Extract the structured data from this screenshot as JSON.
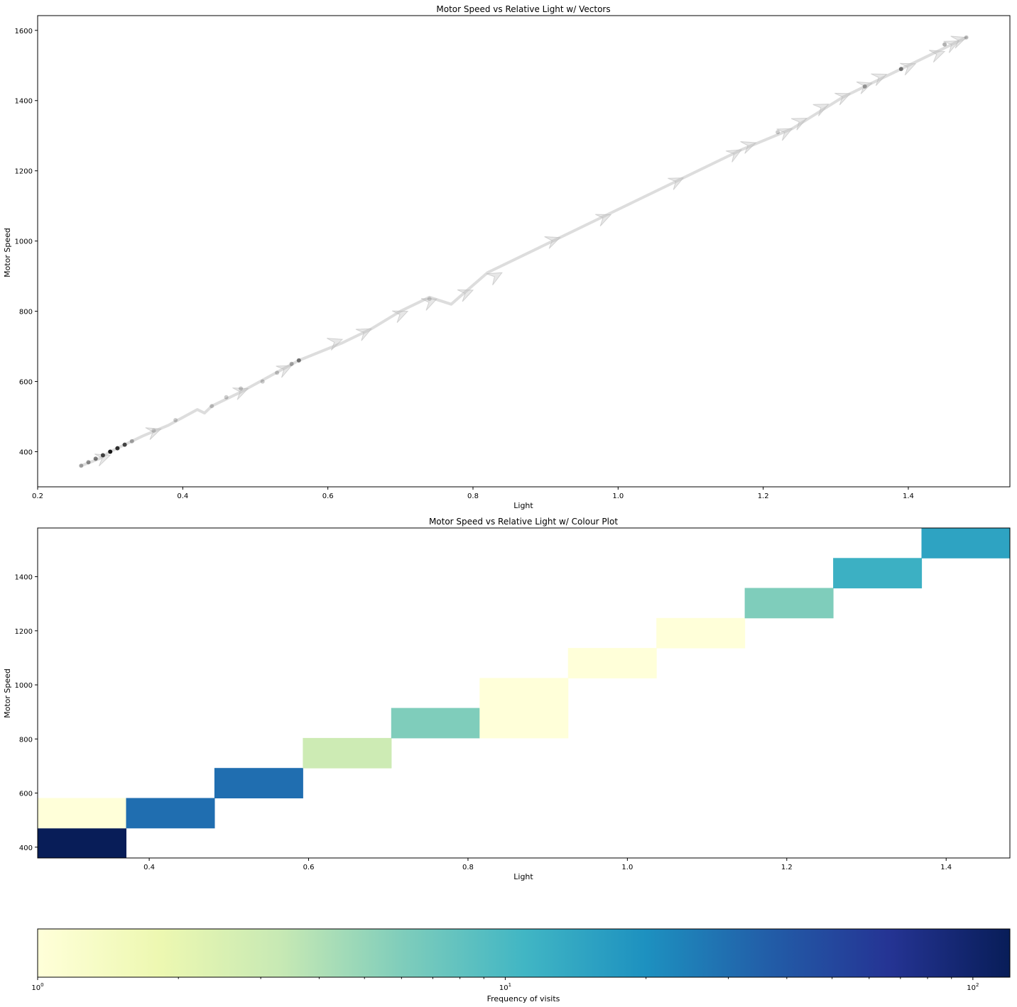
{
  "chart_data": [
    {
      "type": "line",
      "title": "Motor Speed vs Relative Light w/ Vectors",
      "xlabel": "Light",
      "ylabel": "Motor Speed",
      "xlim": [
        0.2,
        1.54
      ],
      "ylim": [
        300,
        1642
      ],
      "xticks": [
        "0.2",
        "0.4",
        "0.6",
        "0.8",
        "1.0",
        "1.2",
        "1.4"
      ],
      "yticks": [
        "400",
        "600",
        "800",
        "1000",
        "1200",
        "1400",
        "1600"
      ],
      "grid": false,
      "path_color": "#d9d9d9",
      "point_color": "#000000",
      "path": [
        [
          0.26,
          360
        ],
        [
          0.285,
          380
        ],
        [
          0.3,
          400
        ],
        [
          0.32,
          420
        ],
        [
          0.345,
          445
        ],
        [
          0.38,
          475
        ],
        [
          0.42,
          520
        ],
        [
          0.43,
          510
        ],
        [
          0.44,
          530
        ],
        [
          0.48,
          570
        ],
        [
          0.52,
          615
        ],
        [
          0.56,
          660
        ],
        [
          0.62,
          710
        ],
        [
          0.66,
          750
        ],
        [
          0.7,
          800
        ],
        [
          0.74,
          840
        ],
        [
          0.77,
          820
        ],
        [
          0.82,
          910
        ],
        [
          0.92,
          1010
        ],
        [
          0.98,
          1070
        ],
        [
          1.09,
          1180
        ],
        [
          1.17,
          1260
        ],
        [
          1.24,
          1320
        ],
        [
          1.31,
          1410
        ],
        [
          1.36,
          1460
        ],
        [
          1.43,
          1530
        ],
        [
          1.48,
          1580
        ]
      ],
      "points": [
        {
          "x": 0.26,
          "y": 360,
          "alpha": 0.3
        },
        {
          "x": 0.27,
          "y": 370,
          "alpha": 0.4
        },
        {
          "x": 0.28,
          "y": 380,
          "alpha": 0.5
        },
        {
          "x": 0.29,
          "y": 390,
          "alpha": 0.7
        },
        {
          "x": 0.3,
          "y": 400,
          "alpha": 0.9
        },
        {
          "x": 0.31,
          "y": 410,
          "alpha": 0.8
        },
        {
          "x": 0.32,
          "y": 420,
          "alpha": 0.7
        },
        {
          "x": 0.33,
          "y": 430,
          "alpha": 0.3
        },
        {
          "x": 0.36,
          "y": 460,
          "alpha": 0.15
        },
        {
          "x": 0.39,
          "y": 490,
          "alpha": 0.2
        },
        {
          "x": 0.44,
          "y": 530,
          "alpha": 0.2
        },
        {
          "x": 0.46,
          "y": 555,
          "alpha": 0.2
        },
        {
          "x": 0.48,
          "y": 580,
          "alpha": 0.2
        },
        {
          "x": 0.51,
          "y": 600,
          "alpha": 0.2
        },
        {
          "x": 0.53,
          "y": 625,
          "alpha": 0.2
        },
        {
          "x": 0.55,
          "y": 650,
          "alpha": 0.3
        },
        {
          "x": 0.56,
          "y": 660,
          "alpha": 0.5
        },
        {
          "x": 0.74,
          "y": 835,
          "alpha": 0.15
        },
        {
          "x": 1.22,
          "y": 1310,
          "alpha": 0.2
        },
        {
          "x": 1.34,
          "y": 1440,
          "alpha": 0.3
        },
        {
          "x": 1.39,
          "y": 1490,
          "alpha": 0.5
        },
        {
          "x": 1.45,
          "y": 1560,
          "alpha": 0.3
        },
        {
          "x": 1.48,
          "y": 1580,
          "alpha": 0.2
        }
      ],
      "arrows": [
        [
          0.26,
          360,
          0.3,
          390
        ],
        [
          0.33,
          435,
          0.37,
          465
        ],
        [
          0.46,
          555,
          0.49,
          580
        ],
        [
          0.52,
          615,
          0.55,
          645
        ],
        [
          0.58,
          690,
          0.62,
          720
        ],
        [
          0.63,
          720,
          0.66,
          750
        ],
        [
          0.67,
          765,
          0.71,
          800
        ],
        [
          0.71,
          800,
          0.75,
          835
        ],
        [
          0.76,
          825,
          0.8,
          860
        ],
        [
          0.8,
          865,
          0.84,
          910
        ],
        [
          0.87,
          970,
          0.92,
          1010
        ],
        [
          0.95,
          1040,
          0.99,
          1075
        ],
        [
          1.05,
          1140,
          1.09,
          1180
        ],
        [
          1.13,
          1215,
          1.17,
          1260
        ],
        [
          1.15,
          1250,
          1.19,
          1280
        ],
        [
          1.2,
          1280,
          1.24,
          1320
        ],
        [
          1.22,
          1310,
          1.26,
          1350
        ],
        [
          1.25,
          1350,
          1.29,
          1390
        ],
        [
          1.28,
          1385,
          1.32,
          1420
        ],
        [
          1.31,
          1420,
          1.35,
          1450
        ],
        [
          1.33,
          1440,
          1.37,
          1475
        ],
        [
          1.37,
          1470,
          1.41,
          1505
        ],
        [
          1.41,
          1510,
          1.45,
          1540
        ],
        [
          1.43,
          1530,
          1.47,
          1570
        ],
        [
          1.44,
          1550,
          1.48,
          1580
        ]
      ]
    },
    {
      "type": "heatmap",
      "title": "Motor Speed vs Relative Light w/ Colour Plot",
      "xlabel": "Light",
      "ylabel": "Motor Speed",
      "xlim": [
        0.26,
        1.48
      ],
      "ylim": [
        360,
        1580
      ],
      "xticks": [
        "0.4",
        "0.6",
        "0.8",
        "1.0",
        "1.2",
        "1.4"
      ],
      "yticks": [
        "400",
        "600",
        "800",
        "1000",
        "1200",
        "1400"
      ],
      "bins_x": 11,
      "bins_y": 11,
      "color_scale": "log",
      "cells": [
        {
          "ix": 0,
          "iy": 0,
          "count": 120
        },
        {
          "ix": 0,
          "iy": 1,
          "count": 1
        },
        {
          "ix": 1,
          "iy": 1,
          "count": 30
        },
        {
          "ix": 2,
          "iy": 2,
          "count": 30
        },
        {
          "ix": 3,
          "iy": 3,
          "count": 3
        },
        {
          "ix": 4,
          "iy": 4,
          "count": 6
        },
        {
          "ix": 5,
          "iy": 4,
          "count": 1
        },
        {
          "ix": 5,
          "iy": 5,
          "count": 1
        },
        {
          "ix": 6,
          "iy": 6,
          "count": 1
        },
        {
          "ix": 7,
          "iy": 7,
          "count": 1
        },
        {
          "ix": 8,
          "iy": 8,
          "count": 6
        },
        {
          "ix": 9,
          "iy": 9,
          "count": 12
        },
        {
          "ix": 10,
          "iy": 10,
          "count": 15
        }
      ]
    },
    {
      "type": "colorbar",
      "label": "Frequency of visits",
      "scale": "log",
      "range": [
        1,
        120
      ],
      "ticks": [
        {
          "value": 1,
          "base": "10",
          "exp": "0"
        },
        {
          "value": 10,
          "base": "10",
          "exp": "1"
        },
        {
          "value": 100,
          "base": "10",
          "exp": "2"
        }
      ],
      "colormap": "YlGnBu",
      "colors": [
        "#ffffd9",
        "#edf8b1",
        "#c7e9b4",
        "#7fcdbb",
        "#41b6c4",
        "#1d91c0",
        "#225ea8",
        "#253494",
        "#081d58"
      ]
    }
  ]
}
